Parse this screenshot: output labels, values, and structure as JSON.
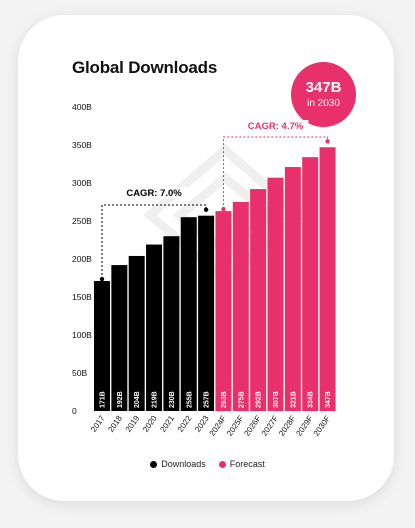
{
  "title": "Global Downloads",
  "badge": {
    "value": "347B",
    "subtitle": "in 2030"
  },
  "colors": {
    "downloads": "#000000",
    "forecast": "#e8306d",
    "text": "#111111"
  },
  "legend": [
    {
      "label": "Downloads",
      "color": "#000000"
    },
    {
      "label": "Forecast",
      "color": "#e8306d"
    }
  ],
  "annotations": [
    {
      "label": "CAGR: 7.0%",
      "from": "2017",
      "to": "2023",
      "color": "#000000"
    },
    {
      "label": "CAGR: 4.7%",
      "from": "2024F",
      "to": "2030F",
      "color": "#e8306d"
    }
  ],
  "chart_data": {
    "type": "bar",
    "title": "Global Downloads",
    "xlabel": "",
    "ylabel": "",
    "ylim": [
      0,
      400
    ],
    "yticks": [
      0,
      50,
      100,
      150,
      200,
      250,
      300,
      350,
      400
    ],
    "ytick_labels": [
      "0",
      "50B",
      "100B",
      "150B",
      "200B",
      "250B",
      "300B",
      "350B",
      "400B"
    ],
    "grid": false,
    "legend_position": "bottom",
    "categories": [
      "2017",
      "2018",
      "2019",
      "2020",
      "2021",
      "2022",
      "2023",
      "2024F",
      "2025F",
      "2026F",
      "2027F",
      "2028F",
      "2029F",
      "2030F"
    ],
    "values": [
      171,
      192,
      204,
      219,
      230,
      255,
      257,
      263,
      275,
      292,
      307,
      321,
      334,
      347
    ],
    "value_labels": [
      "171B",
      "192B",
      "204B",
      "219B",
      "230B",
      "255B",
      "257B",
      "263B",
      "275B",
      "292B",
      "307B",
      "321B",
      "334B",
      "347B"
    ],
    "series_group": [
      "Downloads",
      "Downloads",
      "Downloads",
      "Downloads",
      "Downloads",
      "Downloads",
      "Downloads",
      "Forecast",
      "Forecast",
      "Forecast",
      "Forecast",
      "Forecast",
      "Forecast",
      "Forecast"
    ]
  }
}
